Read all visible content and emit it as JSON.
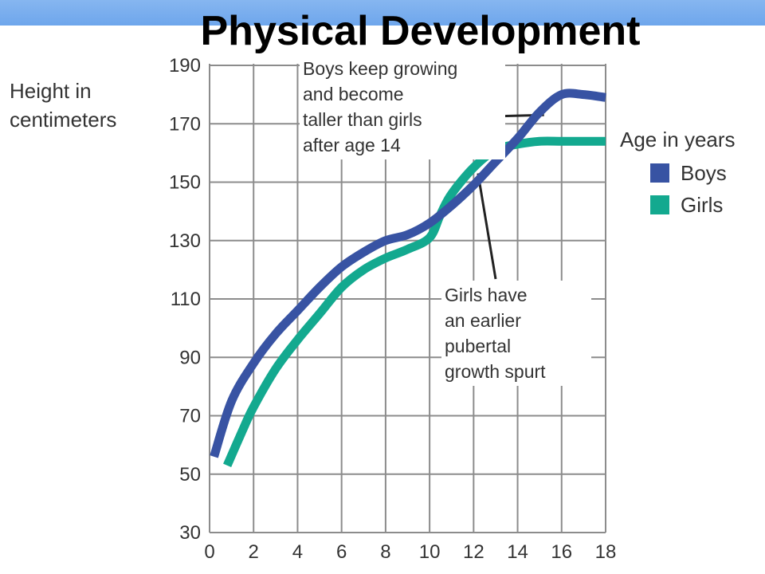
{
  "slide": {
    "title": "Physical Development"
  },
  "chart_data": {
    "type": "line",
    "ylabel": "Height in centimeters",
    "legend_title": "Age in years",
    "xlim": [
      0,
      18
    ],
    "ylim": [
      30,
      190
    ],
    "x_ticks": [
      0,
      2,
      4,
      6,
      8,
      10,
      12,
      14,
      16,
      18
    ],
    "y_ticks": [
      30,
      50,
      70,
      90,
      110,
      130,
      150,
      170,
      190
    ],
    "grid": true,
    "legend_position": "right",
    "series": [
      {
        "name": "Boys",
        "color": "#3853a3",
        "x": [
          0.2,
          1,
          2,
          3,
          4,
          5,
          6,
          7,
          8,
          9,
          10,
          11,
          12,
          13,
          14,
          15,
          16,
          17,
          18
        ],
        "y": [
          56,
          75,
          88,
          98,
          106,
          114,
          121,
          126,
          130,
          132,
          136,
          142,
          149,
          157,
          165,
          174,
          180,
          180,
          179
        ]
      },
      {
        "name": "Girls",
        "color": "#13a98f",
        "x": [
          0.8,
          1.5,
          2,
          3,
          4,
          5,
          6,
          7,
          8,
          9,
          10,
          10.5,
          11,
          12,
          13,
          14,
          15,
          16,
          17,
          18
        ],
        "y": [
          53,
          65,
          73,
          86,
          96,
          105,
          114,
          120,
          124,
          127,
          131,
          139,
          146,
          155,
          161,
          163,
          164,
          164,
          164,
          164
        ]
      }
    ],
    "annotations": [
      {
        "text": [
          "Boys keep growing",
          "and become",
          "taller than girls",
          "after age 14"
        ],
        "target": {
          "x": 15.2,
          "y": 173
        }
      },
      {
        "text": [
          "Girls have",
          "an earlier",
          "pubertal",
          "growth spurt"
        ],
        "target": {
          "x": 12.2,
          "y": 153
        }
      }
    ]
  }
}
